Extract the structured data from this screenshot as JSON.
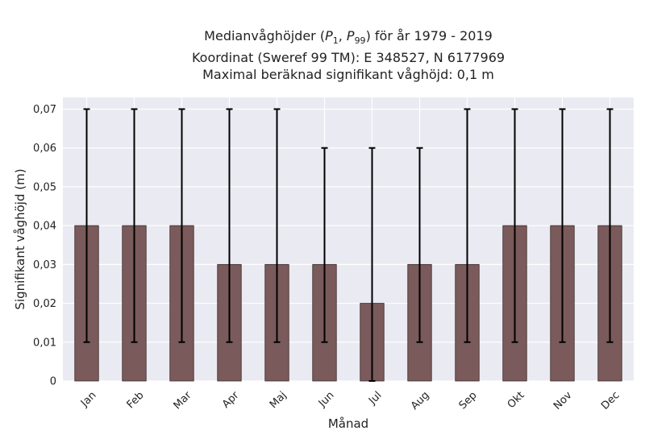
{
  "title": {
    "line1_prefix": "Medianvåghöjder (",
    "p_low_sym": "P",
    "p_low_sub": "1",
    "sep": ", ",
    "p_high_sym": "P",
    "p_high_sub": "99",
    "line1_suffix": ") för år 1979 - 2019",
    "line2": "Koordinat (Sweref 99 TM): E 348527, N 6177969",
    "line3": "Maximal beräknad signifikant våghöjd: 0,1 m"
  },
  "colors": {
    "plot_bg": "#eaeaf2",
    "grid": "#ffffff",
    "bar_fill": "#7a5a5a",
    "bar_edge": "#3a2a2a",
    "errorbar": "#000000"
  },
  "chart_data": {
    "type": "bar",
    "categories": [
      "Jan",
      "Feb",
      "Mar",
      "Apr",
      "Maj",
      "Jun",
      "Jul",
      "Aug",
      "Sep",
      "Okt",
      "Nov",
      "Dec"
    ],
    "values": [
      0.04,
      0.04,
      0.04,
      0.03,
      0.03,
      0.03,
      0.02,
      0.03,
      0.03,
      0.04,
      0.04,
      0.04
    ],
    "err_low": [
      0.01,
      0.01,
      0.01,
      0.01,
      0.01,
      0.01,
      0.0,
      0.01,
      0.01,
      0.01,
      0.01,
      0.01
    ],
    "err_high": [
      0.07,
      0.07,
      0.07,
      0.07,
      0.07,
      0.06,
      0.06,
      0.06,
      0.07,
      0.07,
      0.07,
      0.07
    ],
    "xlabel": "Månad",
    "ylabel": "Signifikant våghöjd (m)",
    "ylim": [
      0,
      0.073
    ],
    "yticks": [
      0,
      0.01,
      0.02,
      0.03,
      0.04,
      0.05,
      0.06,
      0.07
    ],
    "ytick_labels": [
      "0",
      "0,01",
      "0,02",
      "0,03",
      "0,04",
      "0,05",
      "0,06",
      "0,07"
    ],
    "grid": true,
    "legend": "none"
  }
}
